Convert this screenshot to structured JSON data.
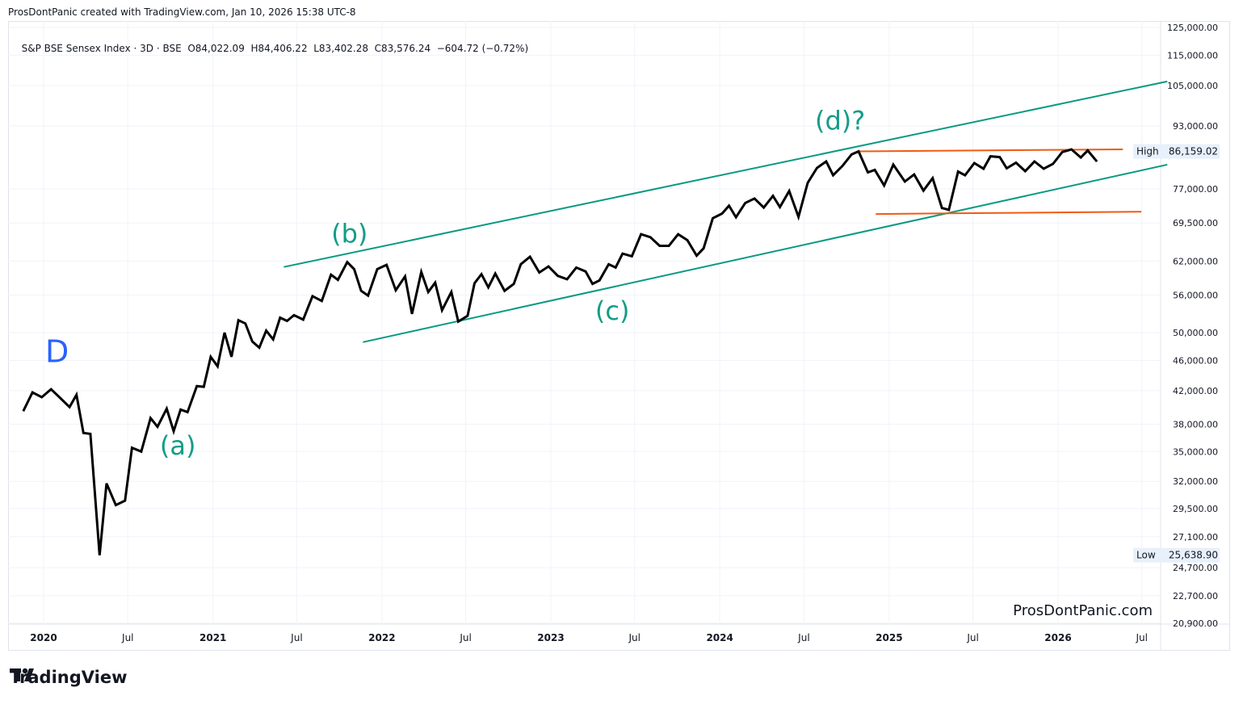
{
  "header": {
    "created_line": "ProsDontPanic created with TradingView.com, Jan 10, 2026 15:38 UTC-8"
  },
  "legend": {
    "symbol": "S&P BSE Sensex Index · 3D · BSE",
    "open": "O84,022.09",
    "high": "H84,406.22",
    "low": "L83,402.28",
    "close": "C83,576.24",
    "change": "−604.72 (−0.72%)"
  },
  "watermark": "ProsDontPanic.com",
  "brand": "TradingView",
  "colors": {
    "price": "#000000",
    "channel": "#089981",
    "range": "#f05a12",
    "wave_label": "#149c88",
    "D_label": "#2962ff",
    "axis_text": "#131722",
    "grid": "#f0f3fa",
    "badge_bg": "#e8f0fb"
  },
  "chart_data": {
    "type": "line",
    "scale": "log",
    "ylim": [
      20900,
      125000
    ],
    "y_ticks": [
      "125,000.00",
      "115,000.00",
      "105,000.00",
      "93,000.00",
      "77,000.00",
      "69,500.00",
      "62,000.00",
      "56,000.00",
      "50,000.00",
      "46,000.00",
      "42,000.00",
      "38,000.00",
      "35,000.00",
      "32,000.00",
      "29,500.00",
      "27,100.00",
      "24,700.00",
      "22,700.00",
      "20,900.00"
    ],
    "x_ticks": [
      "2020",
      "Jul",
      "2021",
      "Jul",
      "2022",
      "Jul",
      "2023",
      "Jul",
      "2024",
      "Jul",
      "2025",
      "Jul",
      "2026",
      "Jul"
    ],
    "high_label": {
      "label": "High",
      "value": "86,159.02",
      "num": 86159.02
    },
    "low_label": {
      "label": "Low",
      "value": "25,638.90",
      "num": 25638.9
    },
    "series": [
      {
        "name": "S&P BSE Sensex Index",
        "points": [
          [
            "2019-11-18",
            39500
          ],
          [
            "2019-12-08",
            41800
          ],
          [
            "2019-12-28",
            41200
          ],
          [
            "2020-01-17",
            42200
          ],
          [
            "2020-02-06",
            41100
          ],
          [
            "2020-02-26",
            40000
          ],
          [
            "2020-03-12",
            41500
          ],
          [
            "2020-03-27",
            37000
          ],
          [
            "2020-04-11",
            36900
          ],
          [
            "2020-05-01",
            25638.9
          ],
          [
            "2020-05-16",
            31800
          ],
          [
            "2020-06-05",
            29800
          ],
          [
            "2020-06-25",
            30200
          ],
          [
            "2020-07-10",
            35400
          ],
          [
            "2020-07-30",
            35000
          ],
          [
            "2020-08-19",
            38700
          ],
          [
            "2020-09-03",
            37700
          ],
          [
            "2020-09-23",
            39800
          ],
          [
            "2020-10-08",
            37200
          ],
          [
            "2020-10-23",
            39700
          ],
          [
            "2020-11-07",
            39400
          ],
          [
            "2020-11-27",
            42600
          ],
          [
            "2020-12-12",
            42500
          ],
          [
            "2020-12-27",
            46500
          ],
          [
            "2021-01-11",
            45200
          ],
          [
            "2021-01-26",
            50000
          ],
          [
            "2021-02-10",
            46500
          ],
          [
            "2021-02-25",
            51900
          ],
          [
            "2021-03-12",
            51400
          ],
          [
            "2021-03-27",
            48700
          ],
          [
            "2021-04-11",
            47800
          ],
          [
            "2021-04-26",
            50300
          ],
          [
            "2021-05-11",
            49000
          ],
          [
            "2021-05-26",
            52300
          ],
          [
            "2021-06-10",
            51800
          ],
          [
            "2021-06-25",
            52700
          ],
          [
            "2021-07-15",
            52000
          ],
          [
            "2021-08-04",
            55800
          ],
          [
            "2021-08-24",
            55000
          ],
          [
            "2021-09-13",
            59500
          ],
          [
            "2021-09-28",
            58600
          ],
          [
            "2021-10-18",
            61800
          ],
          [
            "2021-11-02",
            60500
          ],
          [
            "2021-11-17",
            56700
          ],
          [
            "2021-12-02",
            55900
          ],
          [
            "2021-12-22",
            60500
          ],
          [
            "2022-01-11",
            61300
          ],
          [
            "2022-01-31",
            56800
          ],
          [
            "2022-02-20",
            59200
          ],
          [
            "2022-03-07",
            52900
          ],
          [
            "2022-03-27",
            60000
          ],
          [
            "2022-04-11",
            56500
          ],
          [
            "2022-04-26",
            58100
          ],
          [
            "2022-05-11",
            53500
          ],
          [
            "2022-05-31",
            56500
          ],
          [
            "2022-06-15",
            51700
          ],
          [
            "2022-07-05",
            52600
          ],
          [
            "2022-07-20",
            58000
          ],
          [
            "2022-08-04",
            59600
          ],
          [
            "2022-08-19",
            57300
          ],
          [
            "2022-09-03",
            59700
          ],
          [
            "2022-09-23",
            56700
          ],
          [
            "2022-10-13",
            57900
          ],
          [
            "2022-10-28",
            61400
          ],
          [
            "2022-11-17",
            62800
          ],
          [
            "2022-12-07",
            59900
          ],
          [
            "2022-12-27",
            61000
          ],
          [
            "2023-01-16",
            59300
          ],
          [
            "2023-02-05",
            58700
          ],
          [
            "2023-02-25",
            60800
          ],
          [
            "2023-03-17",
            60100
          ],
          [
            "2023-04-01",
            57900
          ],
          [
            "2023-04-16",
            58500
          ],
          [
            "2023-05-06",
            61400
          ],
          [
            "2023-05-21",
            60800
          ],
          [
            "2023-06-05",
            63400
          ],
          [
            "2023-06-25",
            62900
          ],
          [
            "2023-07-15",
            67200
          ],
          [
            "2023-08-04",
            66600
          ],
          [
            "2023-08-24",
            64900
          ],
          [
            "2023-09-13",
            64900
          ],
          [
            "2023-10-03",
            67200
          ],
          [
            "2023-10-23",
            66000
          ],
          [
            "2023-11-12",
            63000
          ],
          [
            "2023-11-27",
            64400
          ],
          [
            "2023-12-17",
            70500
          ],
          [
            "2024-01-06",
            71500
          ],
          [
            "2024-01-21",
            73200
          ],
          [
            "2024-02-05",
            70700
          ],
          [
            "2024-02-25",
            73800
          ],
          [
            "2024-03-16",
            74800
          ],
          [
            "2024-04-05",
            72800
          ],
          [
            "2024-04-25",
            75400
          ],
          [
            "2024-05-10",
            72900
          ],
          [
            "2024-05-30",
            76500
          ],
          [
            "2024-06-19",
            70800
          ],
          [
            "2024-07-09",
            78400
          ],
          [
            "2024-07-29",
            82000
          ],
          [
            "2024-08-18",
            83600
          ],
          [
            "2024-09-02",
            80200
          ],
          [
            "2024-09-22",
            82500
          ],
          [
            "2024-10-12",
            85400
          ],
          [
            "2024-10-27",
            86159.02
          ],
          [
            "2024-11-16",
            80900
          ],
          [
            "2024-12-01",
            81500
          ],
          [
            "2024-12-21",
            77800
          ],
          [
            "2025-01-10",
            82800
          ],
          [
            "2025-02-04",
            78700
          ],
          [
            "2025-02-24",
            80400
          ],
          [
            "2025-03-16",
            76600
          ],
          [
            "2025-04-05",
            79500
          ],
          [
            "2025-04-25",
            72700
          ],
          [
            "2025-05-10",
            72300
          ],
          [
            "2025-05-30",
            81100
          ],
          [
            "2025-06-14",
            80200
          ],
          [
            "2025-07-04",
            83200
          ],
          [
            "2025-07-24",
            81800
          ],
          [
            "2025-08-08",
            84900
          ],
          [
            "2025-08-28",
            84700
          ],
          [
            "2025-09-12",
            81900
          ],
          [
            "2025-10-02",
            83300
          ],
          [
            "2025-10-22",
            81200
          ],
          [
            "2025-11-11",
            83600
          ],
          [
            "2025-12-01",
            81800
          ],
          [
            "2025-12-21",
            83000
          ],
          [
            "2026-01-10",
            86000
          ],
          [
            "2026-01-30",
            86700
          ],
          [
            "2026-02-19",
            84600
          ],
          [
            "2026-03-06",
            86400
          ],
          [
            "2026-03-26",
            83576.24
          ]
        ]
      }
    ],
    "trendlines": [
      {
        "name": "",
        "color": "#089981",
        "from": [
          "2021-06-03",
          60900
        ],
        "to": [
          "2026-08-25",
          106300
        ]
      },
      {
        "name": "",
        "color": "#089981",
        "from": [
          "2021-11-21",
          48600
        ],
        "to": [
          "2026-08-25",
          82800
        ]
      },
      {
        "name": "",
        "color": "#f05a12",
        "from": [
          "2024-10-27",
          86159.02
        ],
        "to": [
          "2026-05-21",
          86700
        ]
      },
      {
        "name": "",
        "color": "#f05a12",
        "from": [
          "2024-12-03",
          71400
        ],
        "to": [
          "2026-06-30",
          71900
        ]
      }
    ],
    "annotations": [
      {
        "text": "D",
        "date": "2020-01-30",
        "value": 45800,
        "color": "#2962ff",
        "size": 38
      },
      {
        "text": "(a)",
        "date": "2020-10-17",
        "value": 34700,
        "color": "#149c88",
        "size": 32
      },
      {
        "text": "(b)",
        "date": "2021-10-23",
        "value": 65500,
        "color": "#149c88",
        "size": 32
      },
      {
        "text": "(c)",
        "date": "2023-05-14",
        "value": 52000,
        "color": "#149c88",
        "size": 32
      },
      {
        "text": "(d)?",
        "date": "2024-09-17",
        "value": 92000,
        "color": "#149c88",
        "size": 32
      }
    ]
  }
}
